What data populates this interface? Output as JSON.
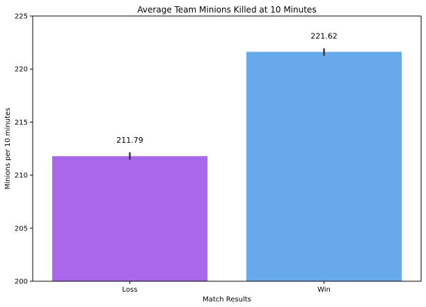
{
  "chart_data": {
    "type": "bar",
    "title": "Average Team Minions Killed at 10 Minutes",
    "xlabel": "Match Results",
    "ylabel": "Minions per 10 minutes",
    "categories": [
      "Loss",
      "Win"
    ],
    "values": [
      211.79,
      221.62
    ],
    "value_labels": [
      "211.79",
      "221.62"
    ],
    "error_bars": [
      {
        "low": 211.45,
        "high": 212.15
      },
      {
        "low": 221.25,
        "high": 221.95
      }
    ],
    "colors": [
      "#a968eb",
      "#68a9eb"
    ],
    "ylim": [
      200,
      225
    ],
    "yticks": [
      {
        "value": 200,
        "label": "200"
      },
      {
        "value": 205,
        "label": "205"
      },
      {
        "value": 210,
        "label": "210"
      },
      {
        "value": 215,
        "label": "215"
      },
      {
        "value": 220,
        "label": "220"
      },
      {
        "value": 225,
        "label": "225"
      }
    ],
    "grid": false,
    "legend": false
  }
}
